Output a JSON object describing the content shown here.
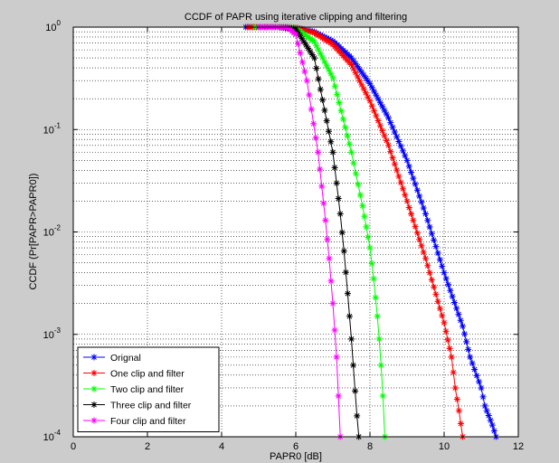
{
  "chart_data": {
    "type": "line",
    "title": "CCDF of PAPR using iterative clipping and filtering",
    "xlabel": "PAPR0 [dB]",
    "ylabel": "CCDF (Pr[PAPR>PAPR0])",
    "xlim": [
      0,
      12
    ],
    "ylim": [
      0.0001,
      1
    ],
    "yscale": "log",
    "grid": true,
    "legend_position": "bottom-left",
    "x_ticks": [
      "0",
      "2",
      "4",
      "6",
      "8",
      "10",
      "12"
    ],
    "y_ticks": [
      {
        "base": "10",
        "exp": "-4"
      },
      {
        "base": "10",
        "exp": "-3"
      },
      {
        "base": "10",
        "exp": "-2"
      },
      {
        "base": "10",
        "exp": "-1"
      },
      {
        "base": "10",
        "exp": "0"
      }
    ],
    "series": [
      {
        "name": "Orignal",
        "color": "#0000ff",
        "x": [
          4.65,
          5.0,
          5.5,
          6.0,
          6.5,
          7.0,
          7.5,
          8.0,
          8.5,
          9.0,
          9.5,
          10.0,
          10.5,
          10.7,
          11.0,
          11.1,
          11.3,
          11.4
        ],
        "y": [
          1.0,
          1.0,
          1.0,
          0.99,
          0.9,
          0.73,
          0.5,
          0.28,
          0.13,
          0.05,
          0.015,
          0.004,
          0.0012,
          0.0006,
          0.0003,
          0.0002,
          0.00013,
          0.0001
        ]
      },
      {
        "name": "One clip and filter",
        "color": "#ff0000",
        "x": [
          4.7,
          5.0,
          5.5,
          6.0,
          6.5,
          7.0,
          7.5,
          8.0,
          8.5,
          9.0,
          9.5,
          10.0,
          10.2,
          10.3,
          10.4,
          10.5
        ],
        "y": [
          1.0,
          1.0,
          1.0,
          0.99,
          0.88,
          0.68,
          0.43,
          0.19,
          0.07,
          0.02,
          0.0055,
          0.0013,
          0.0006,
          0.0003,
          0.00018,
          0.0001
        ]
      },
      {
        "name": "Two clip and filter",
        "color": "#00ff00",
        "x": [
          4.9,
          5.5,
          6.0,
          6.5,
          7.0,
          7.5,
          7.8,
          8.0,
          8.1,
          8.2,
          8.25,
          8.3,
          8.35,
          8.4
        ],
        "y": [
          1.0,
          1.0,
          0.98,
          0.72,
          0.32,
          0.06,
          0.018,
          0.007,
          0.0035,
          0.0015,
          0.0009,
          0.0005,
          0.00025,
          0.0001
        ]
      },
      {
        "name": "Three clip and filter",
        "color": "#000000",
        "x": [
          5.0,
          5.5,
          6.0,
          6.5,
          7.0,
          7.2,
          7.3,
          7.4,
          7.5,
          7.55,
          7.6,
          7.65,
          7.7
        ],
        "y": [
          1.0,
          1.0,
          0.96,
          0.5,
          0.06,
          0.015,
          0.0065,
          0.0025,
          0.0009,
          0.0005,
          0.00028,
          0.00016,
          0.0001
        ]
      },
      {
        "name": "Four clip and filter",
        "color": "#ff00ff",
        "x": [
          5.0,
          5.5,
          5.8,
          6.0,
          6.3,
          6.6,
          6.8,
          6.9,
          7.0,
          7.05,
          7.1,
          7.15,
          7.2
        ],
        "y": [
          1.0,
          1.0,
          0.98,
          0.85,
          0.3,
          0.06,
          0.013,
          0.0055,
          0.002,
          0.0011,
          0.0006,
          0.00025,
          0.0001
        ]
      }
    ]
  }
}
